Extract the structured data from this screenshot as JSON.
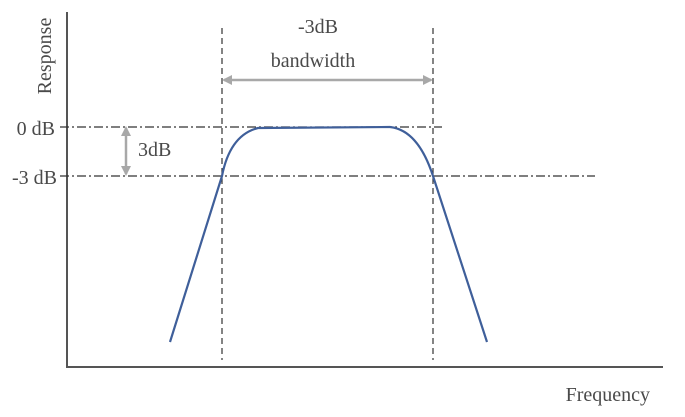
{
  "labels": {
    "y_axis": "Response",
    "x_axis": "Frequency",
    "bandwidth_top": "-3dB",
    "bandwidth_bottom": "bandwidth",
    "level_0db": "0 dB",
    "level_minus3db": "-3 dB",
    "drop": "3dB"
  },
  "colors": {
    "curve": "#3f5f9a",
    "axis": "#555555",
    "guides": "#333333",
    "arrows": "#a8a8a8",
    "text": "#4a4a4a"
  }
}
